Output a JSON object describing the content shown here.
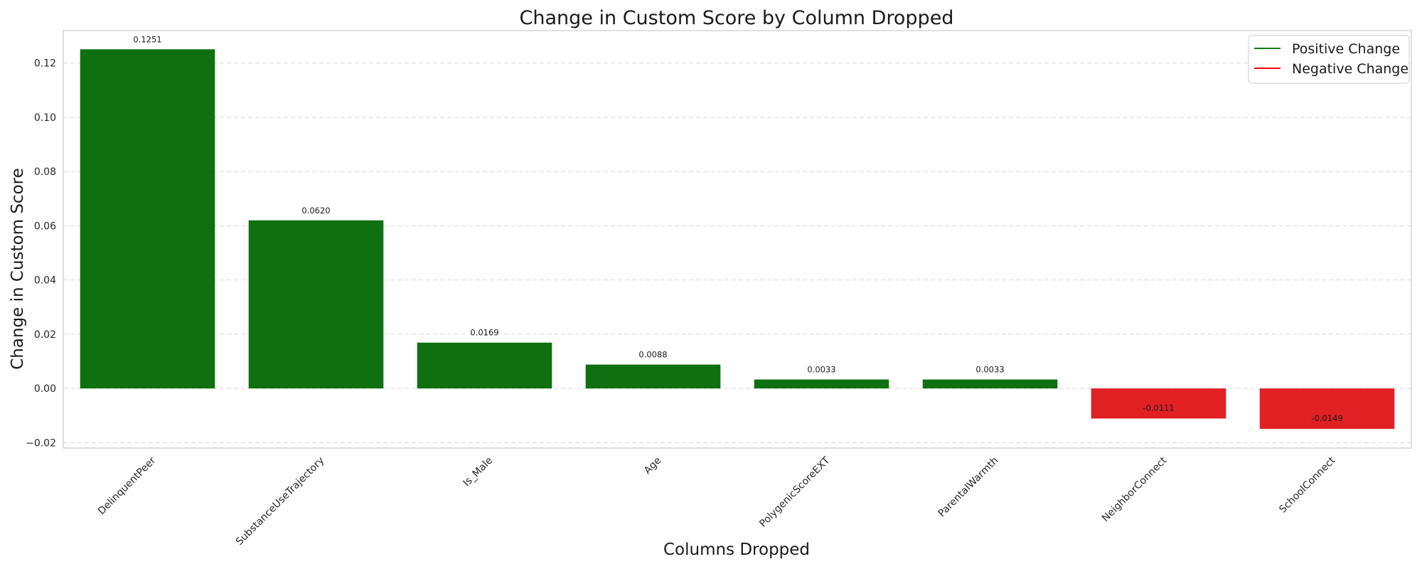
{
  "chart_data": {
    "type": "bar",
    "title": "Change in Custom Score by Column Dropped",
    "xlabel": "Columns Dropped",
    "ylabel": "Change in Custom Score",
    "categories": [
      "DelinquentPeer",
      "SubstanceUseTrajectory",
      "Is_Male",
      "Age",
      "PolygenicScoreEXT",
      "ParentalWarmth",
      "NeighborConnect",
      "SchoolConnect"
    ],
    "values": [
      0.1251,
      0.062,
      0.0169,
      0.0088,
      0.0033,
      0.0033,
      -0.0111,
      -0.0149
    ],
    "value_labels": [
      "0.1251",
      "0.0620",
      "0.0169",
      "0.0088",
      "0.0033",
      "0.0033",
      "-0.0111",
      "-0.0149"
    ],
    "ylim": [
      -0.022,
      0.132
    ],
    "yticks": [
      -0.02,
      0.0,
      0.02,
      0.04,
      0.06,
      0.08,
      0.1,
      0.12
    ],
    "ytick_labels": [
      "−0.02",
      "0.00",
      "0.02",
      "0.04",
      "0.06",
      "0.08",
      "0.10",
      "0.12"
    ],
    "grid": true,
    "legend_position": "top-right",
    "legend": [
      {
        "label": "Positive Change",
        "color": "#008000"
      },
      {
        "label": "Negative Change",
        "color": "#ff0000"
      }
    ],
    "colors": {
      "positive": "#0f7010",
      "negative": "#e02023"
    }
  }
}
